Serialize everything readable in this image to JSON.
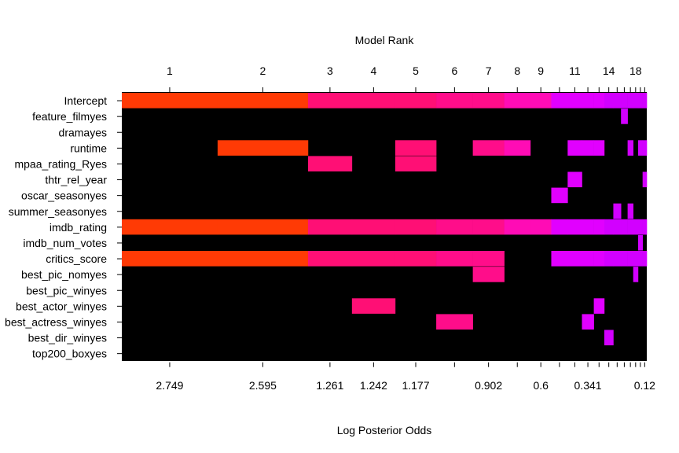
{
  "chart_data": {
    "type": "heatmap",
    "top_axis_label": "Model Rank",
    "bottom_axis_label": "Log Posterior Odds",
    "rank_tick_labels": [
      "1",
      "2",
      "3",
      "4",
      "5",
      "6",
      "7",
      "8",
      "9",
      "11",
      "14",
      "18"
    ],
    "log_odds_tick_labels": [
      "2.749",
      "2.595",
      "1.261",
      "1.242",
      "1.177",
      "0.902",
      "0.6",
      "0.341",
      "0.12"
    ],
    "variables": [
      "Intercept",
      "feature_filmyes",
      "dramayes",
      "runtime",
      "mpaa_rating_Ryes",
      "thtr_rel_year",
      "oscar_seasonyes",
      "summer_seasonyes",
      "imdb_rating",
      "imdb_num_votes",
      "critics_score",
      "best_pic_nomyes",
      "best_pic_winyes",
      "best_actor_winyes",
      "best_actress_winyes",
      "best_dir_winyes",
      "top200_boxyes"
    ],
    "models_top20": [
      {
        "rank": 1,
        "log_odds": 2.749,
        "vars": [
          "Intercept",
          "imdb_rating",
          "critics_score"
        ]
      },
      {
        "rank": 2,
        "log_odds": 2.595,
        "vars": [
          "Intercept",
          "runtime",
          "imdb_rating",
          "critics_score"
        ]
      },
      {
        "rank": 3,
        "log_odds": 1.261,
        "vars": [
          "Intercept",
          "mpaa_rating_Ryes",
          "imdb_rating",
          "critics_score"
        ]
      },
      {
        "rank": 4,
        "log_odds": 1.242,
        "vars": [
          "Intercept",
          "imdb_rating",
          "critics_score",
          "best_actor_winyes"
        ]
      },
      {
        "rank": 5,
        "log_odds": 1.177,
        "vars": [
          "Intercept",
          "runtime",
          "mpaa_rating_Ryes",
          "imdb_rating",
          "critics_score"
        ]
      },
      {
        "rank": 6,
        "log_odds": 1.05,
        "vars": [
          "Intercept",
          "imdb_rating",
          "critics_score",
          "best_actress_winyes"
        ]
      },
      {
        "rank": 7,
        "log_odds": 0.902,
        "vars": [
          "Intercept",
          "runtime",
          "imdb_rating",
          "critics_score",
          "best_pic_nomyes"
        ]
      },
      {
        "rank": 8,
        "log_odds": 0.75,
        "vars": [
          "Intercept",
          "runtime",
          "imdb_rating"
        ]
      },
      {
        "rank": 9,
        "log_odds": 0.6,
        "vars": [
          "Intercept",
          "imdb_rating"
        ]
      },
      {
        "rank": 10,
        "log_odds": 0.47,
        "vars": [
          "Intercept",
          "oscar_seasonyes",
          "imdb_rating",
          "critics_score"
        ]
      },
      {
        "rank": 11,
        "log_odds": 0.41,
        "vars": [
          "Intercept",
          "runtime",
          "thtr_rel_year",
          "imdb_rating",
          "critics_score"
        ]
      },
      {
        "rank": 12,
        "log_odds": 0.341,
        "vars": [
          "Intercept",
          "runtime",
          "imdb_rating",
          "critics_score",
          "best_actress_winyes"
        ]
      },
      {
        "rank": 13,
        "log_odds": 0.3,
        "vars": [
          "Intercept",
          "runtime",
          "imdb_rating",
          "critics_score",
          "best_actor_winyes"
        ]
      },
      {
        "rank": 14,
        "log_odds": 0.26,
        "vars": [
          "Intercept",
          "imdb_rating",
          "critics_score",
          "best_dir_winyes"
        ]
      },
      {
        "rank": 15,
        "log_odds": 0.22,
        "vars": [
          "Intercept",
          "summer_seasonyes",
          "imdb_rating",
          "critics_score"
        ]
      },
      {
        "rank": 16,
        "log_odds": 0.19,
        "vars": [
          "Intercept",
          "feature_filmyes",
          "imdb_rating",
          "critics_score"
        ]
      },
      {
        "rank": 17,
        "log_odds": 0.16,
        "vars": [
          "Intercept",
          "runtime",
          "summer_seasonyes",
          "imdb_rating",
          "critics_score"
        ]
      },
      {
        "rank": 18,
        "log_odds": 0.14,
        "vars": [
          "Intercept",
          "imdb_rating",
          "critics_score",
          "best_pic_nomyes"
        ]
      },
      {
        "rank": 19,
        "log_odds": 0.13,
        "vars": [
          "Intercept",
          "runtime",
          "imdb_rating",
          "imdb_num_votes",
          "critics_score"
        ]
      },
      {
        "rank": 20,
        "log_odds": 0.12,
        "vars": [
          "Intercept",
          "runtime",
          "thtr_rel_year",
          "imdb_rating",
          "critics_score"
        ]
      }
    ],
    "colors": {
      "background": "#000000",
      "high": "#ff3a05",
      "mid_high": "#ff0f75",
      "mid": "#ff0d8a",
      "mid_low": "#ff0cb5",
      "low": "#e100ff",
      "lowest": "#d200ff"
    }
  }
}
